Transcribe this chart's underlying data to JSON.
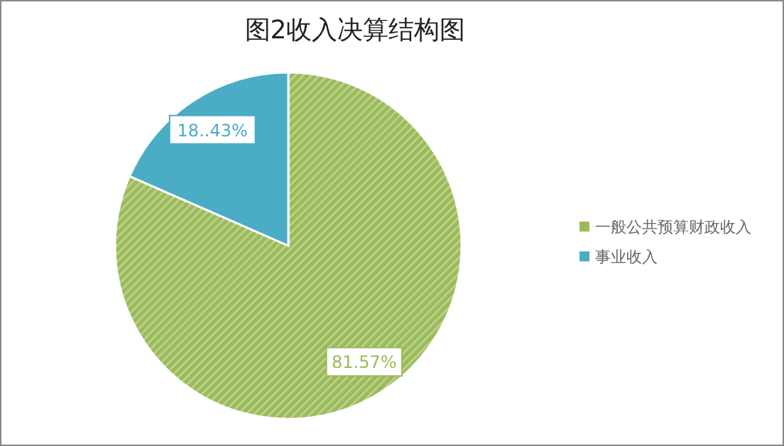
{
  "chart_data": {
    "type": "pie",
    "title": "图2收入决算结构图",
    "categories": [
      "一般公共预算财政收入",
      "事业收入"
    ],
    "values": [
      81.57,
      18.43
    ],
    "colors": [
      "#9bbb59",
      "#4bacc6"
    ],
    "value_labels": [
      "81.57%",
      "18..43%"
    ],
    "legend": "right"
  }
}
